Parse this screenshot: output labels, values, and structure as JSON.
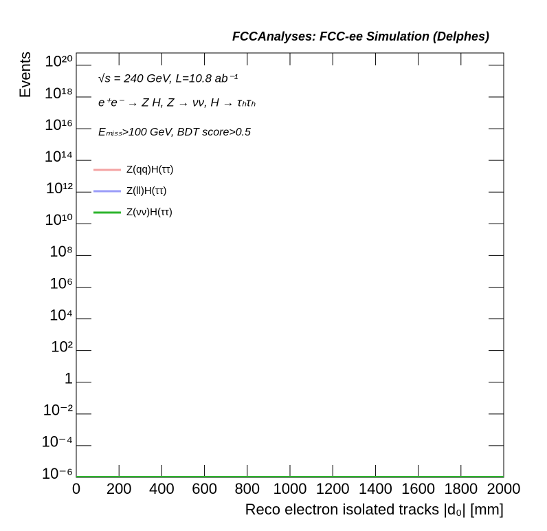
{
  "chart_data": {
    "type": "line",
    "title": "FCCAnalyses: FCC-ee Simulation (Delphes)",
    "annotations": [
      "√s = 240 GeV, L=10.8 ab⁻¹",
      "e⁺e⁻ → Z H, Z → νν, H → τₕτₕ",
      "Eₘᵢₛₛ>100 GeV, BDT score>0.5"
    ],
    "x_label": "Reco electron isolated tracks |d₀| [mm]",
    "y_label": "Events",
    "y_scale": "log",
    "xlim": [
      0,
      2000
    ],
    "xticks": [
      0,
      200,
      400,
      600,
      800,
      1000,
      1200,
      1400,
      1600,
      1800,
      2000
    ],
    "ylim": [
      1e-06,
      6e+20
    ],
    "yticks": [
      {
        "value": 1e-06,
        "label": "10⁻⁶"
      },
      {
        "value": 0.0001,
        "label": "10⁻⁴"
      },
      {
        "value": 0.01,
        "label": "10⁻²"
      },
      1,
      {
        "value": 100,
        "label": "10²"
      },
      {
        "value": 10000,
        "label": "10⁴"
      },
      {
        "value": 1000000.0,
        "label": "10⁶"
      },
      {
        "value": 100000000.0,
        "label": "10⁸"
      },
      {
        "value": 10000000000.0,
        "label": "10¹⁰"
      },
      {
        "value": 1000000000000.0,
        "label": "10¹²"
      },
      {
        "value": 100000000000000.0,
        "label": "10¹⁴"
      },
      {
        "value": 1e+16,
        "label": "10¹⁶"
      },
      {
        "value": 1e+18,
        "label": "10¹⁸"
      },
      {
        "value": 1e+20,
        "label": "10²⁰"
      }
    ],
    "series": [
      {
        "name": "Z(qq)H(ττ)",
        "color": "#f4a3a3"
      },
      {
        "name": "Z(ll)H(ττ)",
        "color": "#9a9cf8"
      },
      {
        "name": "Z(νν)H(ττ)",
        "color": "#2db52d"
      }
    ]
  }
}
